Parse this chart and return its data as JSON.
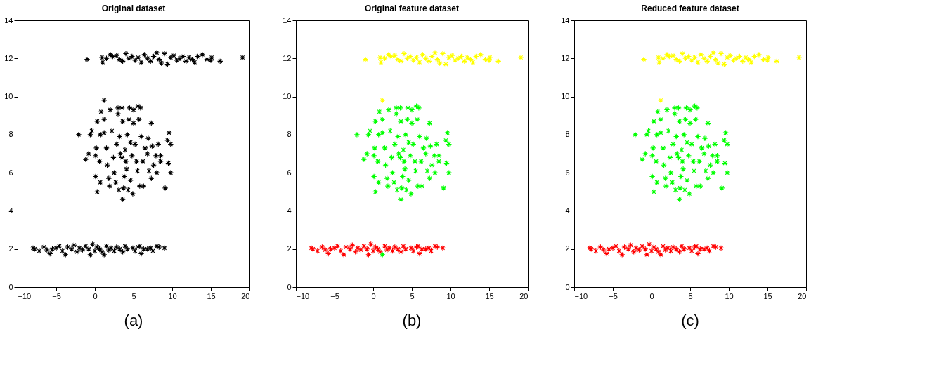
{
  "chart_data": [
    {
      "type": "scatter",
      "title": "Original dataset",
      "annotations": [
        "(a)"
      ],
      "xlim": [
        -10,
        20
      ],
      "ylim": [
        0,
        14
      ],
      "xticks": [
        -10,
        -5,
        0,
        5,
        10,
        15,
        20
      ],
      "yticks": [
        0,
        2,
        4,
        6,
        8,
        10,
        12,
        14
      ],
      "grid": false,
      "marker": "cross",
      "series": [
        {
          "color": "#000000",
          "x": [
            -8,
            -7.8,
            -7.2,
            -6.6,
            -6.2,
            -5.8,
            -5.5,
            -5,
            -4.6,
            -4.2,
            -3.8,
            -3.5,
            -3,
            -2.7,
            -2.3,
            -2,
            -1.6,
            -1.2,
            -0.8,
            -0.6,
            -0.3,
            0,
            0.3,
            0.6,
            0.9,
            1.2,
            1.5,
            1.8,
            2.1,
            2.5,
            2.8,
            3.2,
            3.6,
            3.9,
            4.2,
            4.9,
            5.2,
            5.6,
            5.8,
            6,
            6.3,
            6.8,
            7.2,
            7.5,
            8,
            8.3,
            9,
            1.2,
            -2.1,
            -1.2,
            0.3,
            0.3,
            0.8,
            2,
            3,
            3.5,
            4.5,
            5,
            5.6,
            5.9,
            7.3,
            9.6,
            9.8,
            9.4,
            9.5,
            9.8,
            9.1,
            3.6,
            3.1,
            3.7,
            4.3,
            4.9,
            0.7,
            0.1,
            1.2,
            -0.4,
            -0.6,
            -0.8,
            0.1,
            0.2,
            0.6,
            0.7,
            1.2,
            1.5,
            1.6,
            1.8,
            1.9,
            2.2,
            2.5,
            2.7,
            2.8,
            3,
            3.2,
            3.5,
            3.6,
            3.9,
            4.1,
            4.2,
            4.4,
            4.6,
            4.8,
            5,
            5.2,
            5.5,
            5.7,
            5.8,
            6,
            6.2,
            6.3,
            6.5,
            6.8,
            7,
            7.3,
            7.4,
            7.6,
            7.9,
            8,
            8.2,
            8.5,
            8.5,
            6.9,
            4,
            3.3,
            2.4,
            4.6,
            3.8,
            5.4,
            -1,
            0.9,
            1,
            1.5,
            2,
            2.3,
            2.8,
            3.2,
            3.6,
            4,
            4.4,
            4.8,
            5.2,
            5.6,
            6,
            6.4,
            6.8,
            7.2,
            7.6,
            8,
            8.3,
            8.6,
            9,
            9.4,
            9.8,
            10.2,
            10.6,
            11,
            11.4,
            11.8,
            12.2,
            12.6,
            12.9,
            13.3,
            13.9,
            14.5,
            15.1,
            15,
            16.2,
            19.1
          ],
          "values": [
            2.05,
            2,
            1.9,
            2.1,
            1.95,
            1.75,
            2,
            2.05,
            2.15,
            1.9,
            1.7,
            2.1,
            2,
            2.2,
            1.85,
            2.05,
            1.95,
            2.15,
            2,
            1.7,
            2.25,
            1.9,
            2.1,
            2,
            1.85,
            1.7,
            2.15,
            1.95,
            2.05,
            1.9,
            2.1,
            2,
            1.85,
            2.15,
            2,
            2.05,
            1.9,
            2.1,
            2.15,
            1.75,
            2,
            2,
            2.05,
            1.9,
            2.15,
            2.1,
            2.05,
            9.8,
            8,
            6.7,
            5,
            8.7,
            9.2,
            9.3,
            9.4,
            9.4,
            9.4,
            9.3,
            9.5,
            9.4,
            8.6,
            8.1,
            7.5,
            7.7,
            6.5,
            6,
            5.2,
            4.6,
            5.1,
            5.2,
            5.1,
            4.9,
            5.5,
            5.8,
            8.8,
            8.2,
            8,
            7,
            6.9,
            7.3,
            6.6,
            8,
            8.1,
            7.3,
            6.4,
            5.7,
            5.3,
            8.2,
            6,
            5.5,
            7.5,
            9.1,
            7.9,
            6.8,
            8.7,
            7.2,
            6.2,
            8,
            8.8,
            5.6,
            6.9,
            8.6,
            7.5,
            6.1,
            8.8,
            5.3,
            7.9,
            6.6,
            5.3,
            7.3,
            7,
            6.1,
            5.7,
            7.4,
            6.4,
            6.9,
            6,
            7.5,
            6.9,
            6.6,
            7.8,
            6.6,
            7,
            6.8,
            7.6,
            5.8,
            6.6,
            11.95,
            12.05,
            11.8,
            12,
            12.2,
            12.1,
            12.15,
            11.95,
            11.85,
            12.25,
            12,
            12.1,
            11.9,
            12.05,
            11.8,
            12.2,
            12,
            11.85,
            12.1,
            12.3,
            11.95,
            11.75,
            12.25,
            11.7,
            12.05,
            12.15,
            11.9,
            12,
            12.1,
            11.85,
            12.05,
            11.95,
            11.8,
            12.1,
            12.2,
            11.95,
            12.05,
            11.9,
            11.85,
            12.05
          ]
        }
      ]
    },
    {
      "type": "scatter",
      "title": "Original feature dataset",
      "annotations": [
        "(b)"
      ],
      "xlim": [
        -10,
        20
      ],
      "ylim": [
        0,
        14
      ],
      "xticks": [
        -10,
        -5,
        0,
        5,
        10,
        15,
        20
      ],
      "yticks": [
        0,
        2,
        4,
        6,
        8,
        10,
        12,
        14
      ],
      "grid": false,
      "marker": "cross",
      "series": [
        {
          "color": "#ff0000",
          "x": [
            -8,
            -7.8,
            -7.2,
            -6.6,
            -6.2,
            -5.8,
            -5.5,
            -5,
            -4.6,
            -4.2,
            -3.8,
            -3.5,
            -3,
            -2.7,
            -2.3,
            -2,
            -1.6,
            -1.2,
            -0.8,
            -0.6,
            -0.3,
            0,
            0.3,
            0.6,
            0.9,
            1.5,
            1.8,
            2.1,
            2.5,
            2.8,
            3.2,
            3.6,
            3.9,
            4.2,
            4.9,
            5.2,
            5.6,
            5.8,
            6,
            6.3,
            6.8,
            7.2,
            7.5,
            8,
            8.3,
            9
          ],
          "values": [
            2.05,
            2,
            1.9,
            2.1,
            1.95,
            1.75,
            2,
            2.05,
            2.15,
            1.9,
            1.7,
            2.1,
            2,
            2.2,
            1.85,
            2.05,
            1.95,
            2.15,
            2,
            1.7,
            2.25,
            1.9,
            2.1,
            2,
            1.85,
            2.15,
            1.95,
            2.05,
            1.9,
            2.1,
            2,
            1.85,
            2.15,
            2,
            2.05,
            1.9,
            2.1,
            2.15,
            1.75,
            2,
            2,
            2.05,
            1.9,
            2.15,
            2.1,
            2.05
          ]
        },
        {
          "color": "#00ff00",
          "x": [
            1.2,
            -2.1,
            -1.2,
            0.3,
            0.3,
            0.8,
            2,
            3,
            3.5,
            4.5,
            5,
            5.6,
            5.9,
            7.3,
            9.6,
            9.8,
            9.4,
            9.5,
            9.8,
            9.1,
            3.6,
            3.1,
            3.7,
            4.3,
            4.9,
            0.7,
            0.1,
            1.2,
            -0.4,
            -0.6,
            -0.8,
            0.1,
            0.2,
            0.6,
            0.7,
            1.2,
            1.5,
            1.6,
            1.8,
            1.9,
            2.2,
            2.5,
            2.7,
            2.8,
            3,
            3.2,
            3.5,
            3.6,
            3.9,
            4.1,
            4.2,
            4.4,
            4.6,
            4.8,
            5,
            5.2,
            5.5,
            5.7,
            5.8,
            6,
            6.2,
            6.3,
            6.5,
            6.8,
            7,
            7.3,
            7.4,
            7.6,
            7.9,
            8,
            8.2,
            8.5,
            8.5,
            6.9,
            4,
            3.3,
            2.4,
            4.6,
            3.8,
            5.4
          ],
          "values": [
            1.7,
            8,
            6.7,
            5,
            8.7,
            9.2,
            9.3,
            9.4,
            9.4,
            9.4,
            9.3,
            9.5,
            9.4,
            8.6,
            8.1,
            7.5,
            7.7,
            6.5,
            6,
            5.2,
            4.6,
            5.1,
            5.2,
            5.1,
            4.9,
            5.5,
            5.8,
            8.8,
            8.2,
            8,
            7,
            6.9,
            7.3,
            6.6,
            8,
            8.1,
            7.3,
            6.4,
            5.7,
            5.3,
            8.2,
            6,
            5.5,
            7.5,
            9.1,
            7.9,
            6.8,
            8.7,
            7.2,
            6.2,
            8,
            8.8,
            5.6,
            6.9,
            8.6,
            7.5,
            6.1,
            8.8,
            5.3,
            7.9,
            6.6,
            5.3,
            7.3,
            7,
            6.1,
            5.7,
            7.4,
            6.4,
            6.9,
            6,
            7.5,
            6.9,
            6.6,
            7.8,
            6.6,
            7,
            6.8,
            7.6,
            5.8,
            6.6
          ]
        },
        {
          "color": "#ffff00",
          "x": [
            1.2,
            -1,
            0.9,
            1,
            1.5,
            2,
            2.3,
            2.8,
            3.2,
            3.6,
            4,
            4.4,
            4.8,
            5.2,
            5.6,
            6,
            6.4,
            6.8,
            7.2,
            7.6,
            8,
            8.3,
            8.6,
            9,
            9.4,
            9.8,
            10.2,
            10.6,
            11,
            11.4,
            11.8,
            12.2,
            12.6,
            12.9,
            13.3,
            13.9,
            14.5,
            15.1,
            15,
            16.2,
            19.1
          ],
          "values": [
            9.8,
            11.95,
            12.05,
            11.8,
            12,
            12.2,
            12.1,
            12.15,
            11.95,
            11.85,
            12.25,
            12,
            12.1,
            11.9,
            12.05,
            11.8,
            12.2,
            12,
            11.85,
            12.1,
            12.3,
            11.95,
            11.75,
            12.25,
            11.7,
            12.05,
            12.15,
            11.9,
            12,
            12.1,
            11.85,
            12.05,
            11.95,
            11.8,
            12.1,
            12.2,
            11.95,
            12.05,
            11.9,
            11.85,
            12.05
          ]
        }
      ]
    },
    {
      "type": "scatter",
      "title": "Reduced feature dataset",
      "annotations": [
        "(c)"
      ],
      "xlim": [
        -10,
        20
      ],
      "ylim": [
        0,
        14
      ],
      "xticks": [
        -10,
        -5,
        0,
        5,
        10,
        15,
        20
      ],
      "yticks": [
        0,
        2,
        4,
        6,
        8,
        10,
        12,
        14
      ],
      "grid": false,
      "marker": "cross",
      "series": [
        {
          "color": "#ff0000",
          "x": [
            -8,
            -7.8,
            -7.2,
            -6.6,
            -6.2,
            -5.8,
            -5.5,
            -5,
            -4.6,
            -4.2,
            -3.8,
            -3.5,
            -3,
            -2.7,
            -2.3,
            -2,
            -1.6,
            -1.2,
            -0.8,
            -0.6,
            -0.3,
            0,
            0.3,
            0.6,
            0.9,
            1.2,
            1.5,
            1.8,
            2.1,
            2.5,
            2.8,
            3.2,
            3.6,
            3.9,
            4.2,
            4.9,
            5.2,
            5.6,
            5.8,
            6,
            6.3,
            6.8,
            7.2,
            7.5,
            8,
            8.3,
            9
          ],
          "values": [
            2.05,
            2,
            1.9,
            2.1,
            1.95,
            1.75,
            2,
            2.05,
            2.15,
            1.9,
            1.7,
            2.1,
            2,
            2.2,
            1.85,
            2.05,
            1.95,
            2.15,
            2,
            1.7,
            2.25,
            1.9,
            2.1,
            2,
            1.85,
            1.7,
            2.15,
            1.95,
            2.05,
            1.9,
            2.1,
            2,
            1.85,
            2.15,
            2,
            2.05,
            1.9,
            2.1,
            2.15,
            1.75,
            2,
            2,
            2.05,
            1.9,
            2.15,
            2.1,
            2.05
          ]
        },
        {
          "color": "#00ff00",
          "x": [
            -2.1,
            -1.2,
            0.3,
            0.3,
            0.8,
            2,
            3,
            3.5,
            4.5,
            5,
            5.6,
            5.9,
            7.3,
            9.6,
            9.8,
            9.4,
            9.5,
            9.8,
            9.1,
            3.6,
            3.1,
            3.7,
            4.3,
            4.9,
            0.7,
            0.1,
            1.2,
            -0.4,
            -0.6,
            -0.8,
            0.1,
            0.2,
            0.6,
            0.7,
            1.2,
            1.5,
            1.6,
            1.8,
            1.9,
            2.2,
            2.5,
            2.7,
            2.8,
            3,
            3.2,
            3.5,
            3.6,
            3.9,
            4.1,
            4.2,
            4.4,
            4.6,
            4.8,
            5,
            5.2,
            5.5,
            5.7,
            5.8,
            6,
            6.2,
            6.3,
            6.5,
            6.8,
            7,
            7.3,
            7.4,
            7.6,
            7.9,
            8,
            8.2,
            8.5,
            8.5,
            6.9,
            4,
            3.3,
            2.4,
            4.6,
            3.8,
            5.4
          ],
          "values": [
            8,
            6.7,
            5,
            8.7,
            9.2,
            9.3,
            9.4,
            9.4,
            9.4,
            9.3,
            9.5,
            9.4,
            8.6,
            8.1,
            7.5,
            7.7,
            6.5,
            6,
            5.2,
            4.6,
            5.1,
            5.2,
            5.1,
            4.9,
            5.5,
            5.8,
            8.8,
            8.2,
            8,
            7,
            6.9,
            7.3,
            6.6,
            8,
            8.1,
            7.3,
            6.4,
            5.7,
            5.3,
            8.2,
            6,
            5.5,
            7.5,
            9.1,
            7.9,
            6.8,
            8.7,
            7.2,
            6.2,
            8,
            8.8,
            5.6,
            6.9,
            8.6,
            7.5,
            6.1,
            8.8,
            5.3,
            7.9,
            6.6,
            5.3,
            7.3,
            7,
            6.1,
            5.7,
            7.4,
            6.4,
            6.9,
            6,
            7.5,
            6.9,
            6.6,
            7.8,
            6.6,
            7,
            6.8,
            7.6,
            5.8,
            6.6
          ]
        },
        {
          "color": "#ffff00",
          "x": [
            1.2,
            -1,
            0.9,
            1,
            1.5,
            2,
            2.3,
            2.8,
            3.2,
            3.6,
            4,
            4.4,
            4.8,
            5.2,
            5.6,
            6,
            6.4,
            6.8,
            7.2,
            7.6,
            8,
            8.3,
            8.6,
            9,
            9.4,
            9.8,
            10.2,
            10.6,
            11,
            11.4,
            11.8,
            12.2,
            12.6,
            12.9,
            13.3,
            13.9,
            14.5,
            15.1,
            15,
            16.2,
            19.1
          ],
          "values": [
            9.8,
            11.95,
            12.05,
            11.8,
            12,
            12.2,
            12.1,
            12.15,
            11.95,
            11.85,
            12.25,
            12,
            12.1,
            11.9,
            12.05,
            11.8,
            12.2,
            12,
            11.85,
            12.1,
            12.3,
            11.95,
            11.75,
            12.25,
            11.7,
            12.05,
            12.15,
            11.9,
            12,
            12.1,
            11.85,
            12.05,
            11.95,
            11.8,
            12.1,
            12.2,
            11.95,
            12.05,
            11.9,
            11.85,
            12.05
          ]
        }
      ]
    }
  ]
}
